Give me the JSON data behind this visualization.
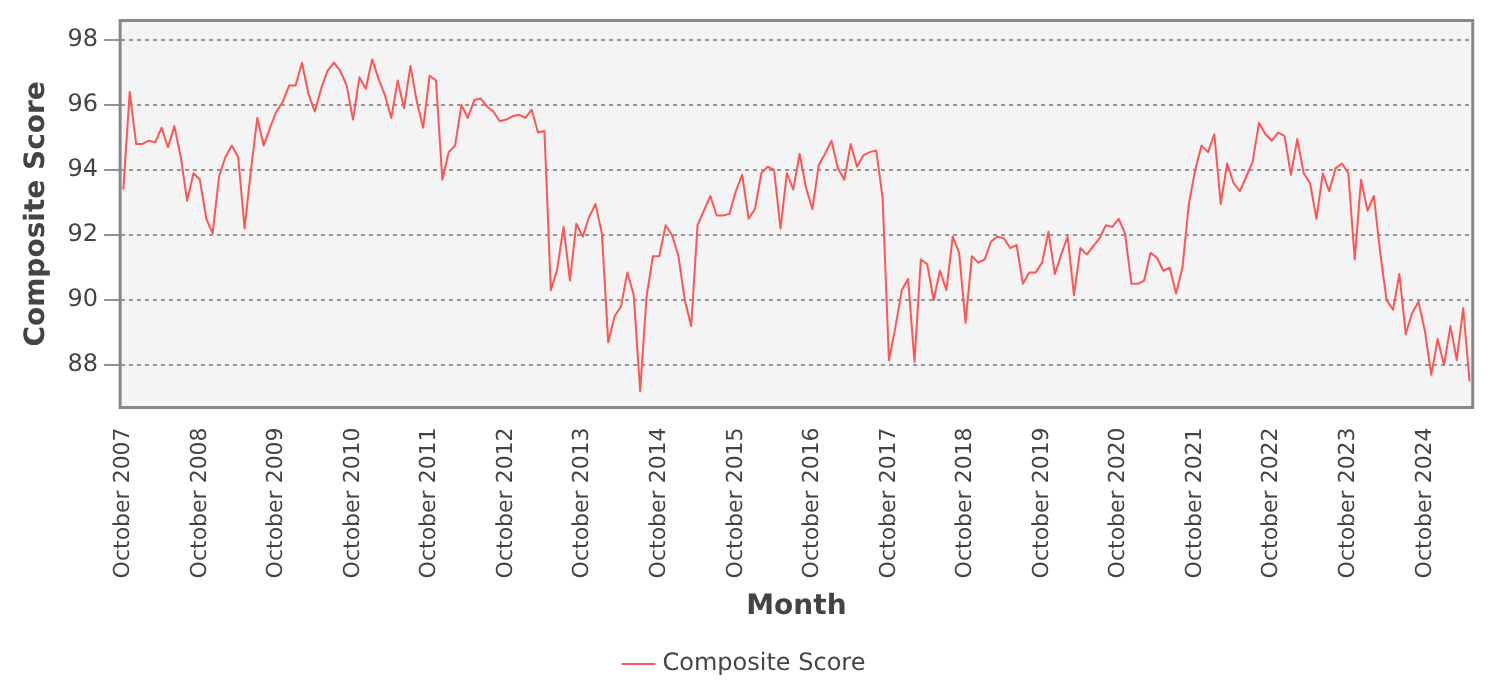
{
  "chart_data": {
    "type": "line",
    "xlabel": "Month",
    "ylabel": "Composite Score",
    "legend": "bottom",
    "grid": "y",
    "marker": "none",
    "ylim": [
      86.7,
      98.6
    ],
    "yticks": [
      88,
      90,
      92,
      94,
      96,
      98
    ],
    "categories": [
      "October 2007",
      null,
      null,
      null,
      null,
      null,
      null,
      null,
      null,
      null,
      null,
      null,
      "October 2008",
      null,
      null,
      null,
      null,
      null,
      null,
      null,
      null,
      null,
      null,
      null,
      "October 2009",
      null,
      null,
      null,
      null,
      null,
      null,
      null,
      null,
      null,
      null,
      null,
      "October 2010",
      null,
      null,
      null,
      null,
      null,
      null,
      null,
      null,
      null,
      null,
      null,
      "October 2011",
      null,
      null,
      null,
      null,
      null,
      null,
      null,
      null,
      null,
      null,
      null,
      "October 2012",
      null,
      null,
      null,
      null,
      null,
      null,
      null,
      null,
      null,
      null,
      null,
      "October 2013",
      null,
      null,
      null,
      null,
      null,
      null,
      null,
      null,
      null,
      null,
      null,
      "October 2014",
      null,
      null,
      null,
      null,
      null,
      null,
      null,
      null,
      null,
      null,
      null,
      "October 2015",
      null,
      null,
      null,
      null,
      null,
      null,
      null,
      null,
      null,
      null,
      null,
      "October 2016",
      null,
      null,
      null,
      null,
      null,
      null,
      null,
      null,
      null,
      null,
      null,
      "October 2017",
      null,
      null,
      null,
      null,
      null,
      null,
      null,
      null,
      null,
      null,
      null,
      "October 2018",
      null,
      null,
      null,
      null,
      null,
      null,
      null,
      null,
      null,
      null,
      null,
      "October 2019",
      null,
      null,
      null,
      null,
      null,
      null,
      null,
      null,
      null,
      null,
      null,
      "October 2020",
      null,
      null,
      null,
      null,
      null,
      null,
      null,
      null,
      null,
      null,
      null,
      "October 2021",
      null,
      null,
      null,
      null,
      null,
      null,
      null,
      null,
      null,
      null,
      null,
      "October 2022",
      null,
      null,
      null,
      null,
      null,
      null,
      null,
      null,
      null,
      null,
      null,
      "October 2023",
      null,
      null,
      null,
      null,
      null,
      null,
      null,
      null,
      null,
      null,
      null,
      "October 2024",
      null,
      null,
      null,
      null,
      null,
      null,
      null
    ],
    "series": [
      {
        "name": "Composite Score",
        "color": "#ff5555",
        "values": [
          93.4,
          96.4,
          94.8,
          94.8,
          94.9,
          94.85,
          95.3,
          94.7,
          95.35,
          94.4,
          93.05,
          93.9,
          93.7,
          92.5,
          92.05,
          93.8,
          94.4,
          94.75,
          94.4,
          92.2,
          94.0,
          95.6,
          94.75,
          95.3,
          95.8,
          96.1,
          96.6,
          96.6,
          97.3,
          96.35,
          95.8,
          96.5,
          97.05,
          97.3,
          97.05,
          96.6,
          95.55,
          96.85,
          96.5,
          97.4,
          96.8,
          96.3,
          95.6,
          96.75,
          95.9,
          97.2,
          96.1,
          95.3,
          96.9,
          96.75,
          93.7,
          94.55,
          94.75,
          96.0,
          95.6,
          96.15,
          96.2,
          95.95,
          95.8,
          95.5,
          95.55,
          95.65,
          95.7,
          95.6,
          95.85,
          95.15,
          95.2,
          90.3,
          90.95,
          92.25,
          90.6,
          92.35,
          91.95,
          92.55,
          92.95,
          92.05,
          88.7,
          89.5,
          89.8,
          90.85,
          90.15,
          87.2,
          90.1,
          91.35,
          91.35,
          92.3,
          92.0,
          91.35,
          90.0,
          89.2,
          92.3,
          92.75,
          93.2,
          92.6,
          92.6,
          92.65,
          93.35,
          93.85,
          92.5,
          92.8,
          93.9,
          94.1,
          94.0,
          92.2,
          93.9,
          93.4,
          94.5,
          93.45,
          92.8,
          94.15,
          94.5,
          94.9,
          94.05,
          93.7,
          94.8,
          94.1,
          94.45,
          94.55,
          94.6,
          93.15,
          88.15,
          89.15,
          90.3,
          90.65,
          88.1,
          91.25,
          91.1,
          90.0,
          90.9,
          90.3,
          91.95,
          91.45,
          89.3,
          91.35,
          91.15,
          91.25,
          91.8,
          91.95,
          91.9,
          91.6,
          91.7,
          90.5,
          90.85,
          90.85,
          91.15,
          92.1,
          90.8,
          91.4,
          91.95,
          90.15,
          91.6,
          91.4,
          91.65,
          91.9,
          92.3,
          92.25,
          92.5,
          92.05,
          90.5,
          90.5,
          90.6,
          91.45,
          91.3,
          90.9,
          91.0,
          90.2,
          91.0,
          92.95,
          94.0,
          94.75,
          94.55,
          95.1,
          92.95,
          94.2,
          93.6,
          93.35,
          93.8,
          94.25,
          95.45,
          95.1,
          94.9,
          95.15,
          95.05,
          93.85,
          94.95,
          93.9,
          93.6,
          92.5,
          93.9,
          93.35,
          94.05,
          94.2,
          93.9,
          91.25,
          93.7,
          92.75,
          93.2,
          91.45,
          90.0,
          89.7,
          90.8,
          88.95,
          89.6,
          89.95,
          89.05,
          87.7,
          88.8,
          88.0,
          89.2,
          88.15,
          89.75,
          87.5
        ]
      }
    ]
  }
}
